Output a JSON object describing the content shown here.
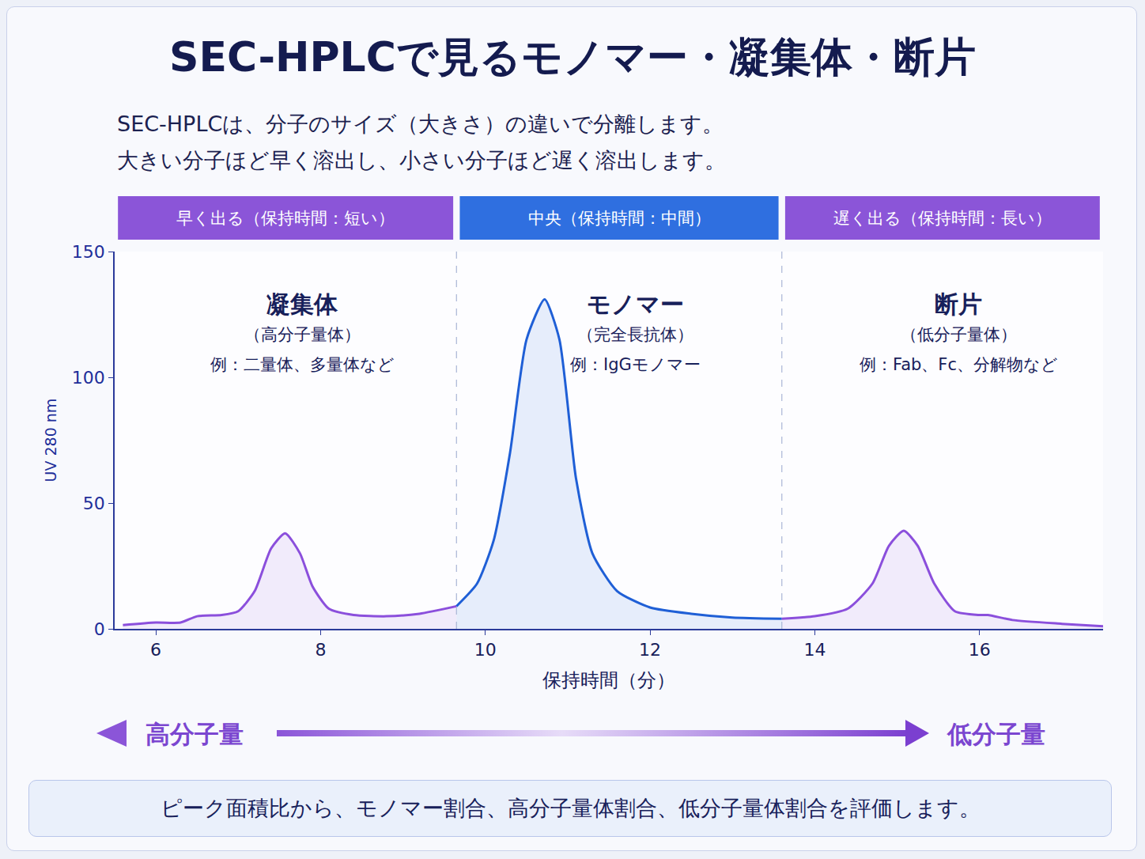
{
  "header": {
    "title": "SEC-HPLCで見るモノマー・凝集体・断片",
    "subtitle": [
      "SEC-HPLCは、分子のサイズ（大きさ）の違いで分離します。",
      "大きい分子ほど早く溶出し、小さい分子ほど遅く溶出します。"
    ]
  },
  "chart_data": {
    "type": "line",
    "x_label": "保持時間（分）",
    "y_label": "UV 280 nm",
    "xlim": [
      5.5,
      17.5
    ],
    "xticks": [
      6,
      8,
      10,
      12,
      14,
      16
    ],
    "ylim": [
      0,
      150
    ],
    "yticks": [
      0,
      50,
      100,
      150
    ],
    "grid": false,
    "regions": [
      {
        "band": "早く出る（保持時間：短い）",
        "band_color": "#8b55d8",
        "name": "凝集体",
        "subtitle": "（高分子量体）",
        "example": "例：二量体、多量体など",
        "x_start": 5.5,
        "x_end": 9.65
      },
      {
        "band": "中央（保持時間：中間）",
        "band_color": "#2f6fe0",
        "name": "モノマー",
        "subtitle": "（完全長抗体）",
        "example": "例：IgGモノマー",
        "x_start": 9.65,
        "x_end": 13.6
      },
      {
        "band": "遅く出る（保持時間：長い）",
        "band_color": "#8b55d8",
        "name": "断片",
        "subtitle": "（低分子量体）",
        "example": "例：Fab、Fc、分解物など",
        "x_start": 13.6,
        "x_end": 17.5
      }
    ],
    "series": [
      {
        "name": "凝集体",
        "color": "#8b4fdc",
        "x": [
          5.6,
          6.0,
          6.3,
          6.5,
          6.8,
          7.0,
          7.2,
          7.4,
          7.57,
          7.75,
          7.9,
          8.1,
          8.4,
          8.8,
          9.2,
          9.65
        ],
        "values": [
          1.5,
          2.5,
          2.5,
          5,
          5.5,
          7,
          15,
          32,
          38,
          30,
          17,
          8,
          5.5,
          5,
          6,
          9
        ]
      },
      {
        "name": "モノマー",
        "color": "#1f5fd6",
        "x": [
          9.65,
          9.9,
          10.1,
          10.3,
          10.5,
          10.72,
          10.9,
          11.1,
          11.3,
          11.6,
          12.0,
          12.5,
          13.0,
          13.6
        ],
        "values": [
          9,
          18,
          35,
          70,
          115,
          131,
          115,
          60,
          30,
          15,
          8.5,
          6,
          4.5,
          4
        ]
      },
      {
        "name": "断片",
        "color": "#8b4fdc",
        "x": [
          13.6,
          14.0,
          14.4,
          14.7,
          14.9,
          15.08,
          15.25,
          15.45,
          15.7,
          16.0,
          16.1,
          16.4,
          17.0,
          17.5
        ],
        "values": [
          4,
          5,
          8,
          18,
          33,
          39,
          33,
          18,
          7,
          5.5,
          5.5,
          3.5,
          2,
          1
        ]
      }
    ]
  },
  "scale_arrow": {
    "left": "高分子量",
    "right": "低分子量"
  },
  "footer": "ピーク面積比から、モノマー割合、高分子量体割合、低分子量体割合を評価します。"
}
